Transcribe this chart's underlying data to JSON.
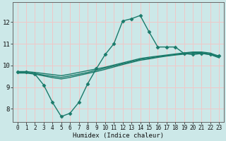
{
  "xlabel": "Humidex (Indice chaleur)",
  "ylabel": "",
  "bg_color": "#cce8e8",
  "grid_color": "#f0c8c8",
  "line_color": "#1a7a6a",
  "x_ticks": [
    0,
    1,
    2,
    3,
    4,
    5,
    6,
    7,
    8,
    9,
    10,
    11,
    12,
    13,
    14,
    15,
    16,
    17,
    18,
    19,
    20,
    21,
    22,
    23
  ],
  "y_ticks": [
    8,
    9,
    10,
    11,
    12
  ],
  "xlim": [
    -0.5,
    23.5
  ],
  "ylim": [
    7.4,
    12.9
  ],
  "lines": [
    {
      "x": [
        0,
        1,
        2,
        3,
        4,
        5,
        6,
        7,
        8,
        9,
        10,
        11,
        12,
        13,
        14,
        15,
        16,
        17,
        18,
        19,
        20,
        21,
        22,
        23
      ],
      "y": [
        9.7,
        9.7,
        9.6,
        9.1,
        8.3,
        7.65,
        7.8,
        8.3,
        9.15,
        9.85,
        10.5,
        11.0,
        12.05,
        12.15,
        12.3,
        11.55,
        10.85,
        10.85,
        10.85,
        10.55,
        10.5,
        10.55,
        10.5,
        10.45
      ],
      "marker": "D",
      "markersize": 2.5,
      "linewidth": 1.0
    },
    {
      "x": [
        0,
        1,
        2,
        3,
        4,
        5,
        6,
        7,
        8,
        9,
        10,
        11,
        12,
        13,
        14,
        15,
        16,
        17,
        18,
        19,
        20,
        21,
        22,
        23
      ],
      "y": [
        9.72,
        9.72,
        9.68,
        9.63,
        9.58,
        9.53,
        9.6,
        9.68,
        9.76,
        9.84,
        9.92,
        10.02,
        10.12,
        10.22,
        10.32,
        10.38,
        10.43,
        10.48,
        10.53,
        10.58,
        10.62,
        10.62,
        10.57,
        10.42
      ],
      "marker": null,
      "markersize": 0,
      "linewidth": 1.0
    },
    {
      "x": [
        0,
        1,
        2,
        3,
        4,
        5,
        6,
        7,
        8,
        9,
        10,
        11,
        12,
        13,
        14,
        15,
        16,
        17,
        18,
        19,
        20,
        21,
        22,
        23
      ],
      "y": [
        9.68,
        9.68,
        9.63,
        9.56,
        9.5,
        9.45,
        9.52,
        9.6,
        9.68,
        9.78,
        9.88,
        9.98,
        10.08,
        10.18,
        10.28,
        10.34,
        10.4,
        10.45,
        10.5,
        10.55,
        10.59,
        10.59,
        10.53,
        10.38
      ],
      "marker": null,
      "markersize": 0,
      "linewidth": 1.0
    },
    {
      "x": [
        0,
        1,
        2,
        3,
        4,
        5,
        6,
        7,
        8,
        9,
        10,
        11,
        12,
        13,
        14,
        15,
        16,
        17,
        18,
        19,
        20,
        21,
        22,
        23
      ],
      "y": [
        9.65,
        9.65,
        9.6,
        9.52,
        9.44,
        9.38,
        9.45,
        9.54,
        9.63,
        9.72,
        9.82,
        9.93,
        10.04,
        10.14,
        10.24,
        10.3,
        10.37,
        10.43,
        10.48,
        10.52,
        10.56,
        10.56,
        10.5,
        10.35
      ],
      "marker": null,
      "markersize": 0,
      "linewidth": 1.0
    }
  ]
}
